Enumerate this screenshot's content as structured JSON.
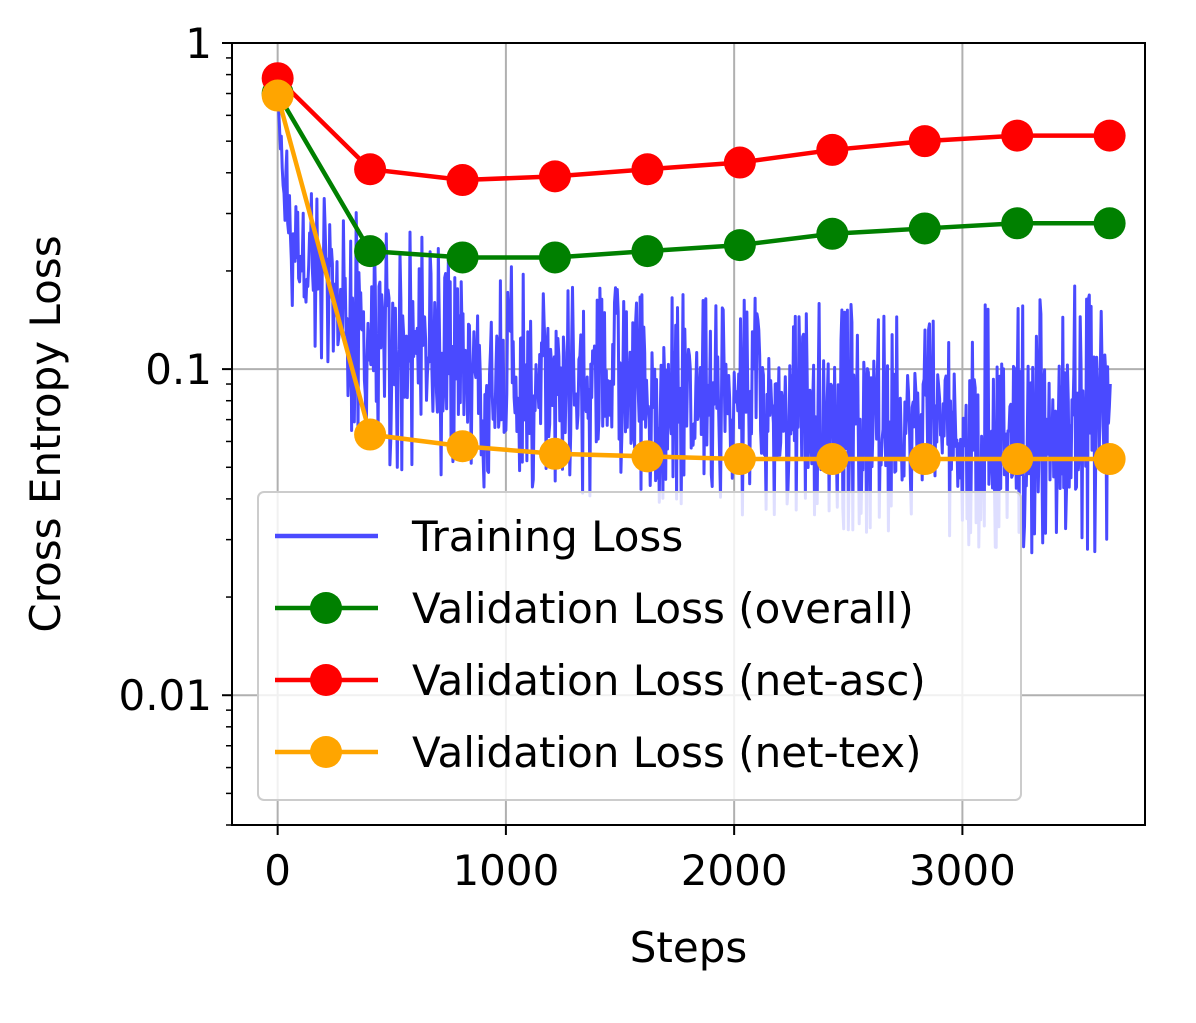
{
  "chart_data": {
    "type": "line",
    "title": "",
    "xlabel": "Steps",
    "ylabel": "Cross Entropy Loss",
    "yscale": "log",
    "xlim": [
      -200,
      3800
    ],
    "ylim": [
      0.004,
      1
    ],
    "xticks": [
      0,
      1000,
      2000,
      3000
    ],
    "xtick_labels": [
      "0",
      "1000",
      "2000",
      "3000"
    ],
    "yticks": [
      1,
      0.1,
      0.01
    ],
    "ytick_labels": [
      "1",
      "0.1",
      "0.01"
    ],
    "grid": true,
    "legend_position": "lower-left",
    "training": {
      "name": "Training Loss",
      "color": "#4a4aff",
      "x_end": 3650,
      "envelope": {
        "steps": [
          0,
          50,
          200,
          400,
          600,
          800,
          1000,
          1500,
          2000,
          2500,
          3000,
          3400,
          3650
        ],
        "upper": [
          0.72,
          0.5,
          0.34,
          0.3,
          0.26,
          0.23,
          0.22,
          0.18,
          0.17,
          0.16,
          0.16,
          0.17,
          0.2
        ],
        "lower": [
          0.5,
          0.15,
          0.09,
          0.05,
          0.048,
          0.045,
          0.042,
          0.04,
          0.036,
          0.032,
          0.028,
          0.026,
          0.025
        ]
      }
    },
    "series": [
      {
        "name": "Validation Loss (overall)",
        "color": "#008000",
        "x": [
          0,
          405,
          810,
          1215,
          1620,
          2025,
          2430,
          2835,
          3240,
          3645
        ],
        "values": [
          0.7,
          0.23,
          0.22,
          0.22,
          0.23,
          0.24,
          0.26,
          0.27,
          0.28,
          0.28
        ]
      },
      {
        "name": "Validation Loss (net-asc)",
        "color": "#ff0000",
        "x": [
          0,
          405,
          810,
          1215,
          1620,
          2025,
          2430,
          2835,
          3240,
          3645
        ],
        "values": [
          0.78,
          0.41,
          0.38,
          0.39,
          0.41,
          0.43,
          0.47,
          0.5,
          0.52,
          0.52
        ]
      },
      {
        "name": "Validation Loss (net-tex)",
        "color": "#ffa500",
        "x": [
          0,
          405,
          810,
          1215,
          1620,
          2025,
          2430,
          2835,
          3240,
          3645
        ],
        "values": [
          0.69,
          0.063,
          0.058,
          0.055,
          0.054,
          0.053,
          0.053,
          0.053,
          0.053,
          0.053
        ]
      }
    ]
  }
}
